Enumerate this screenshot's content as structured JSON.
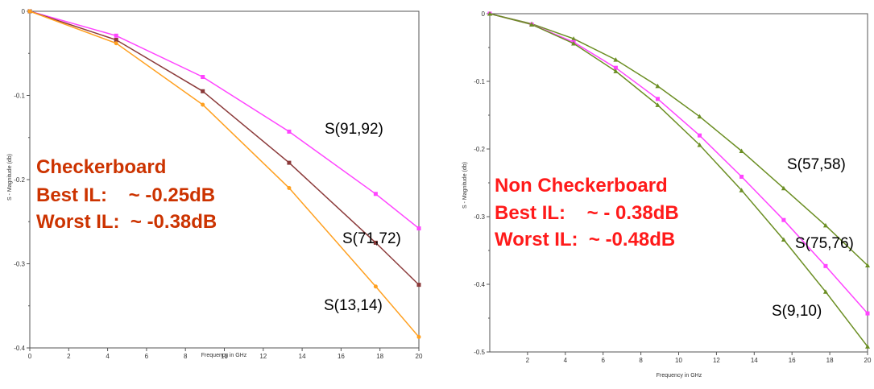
{
  "chart_data": [
    {
      "type": "line",
      "title": "",
      "xlabel": "Frequency in GHz",
      "ylabel": "S - Magnitude (db)",
      "xlim": [
        0,
        20
      ],
      "ylim": [
        -0.4,
        0
      ],
      "xticks": [
        0,
        2,
        4,
        6,
        8,
        10,
        12,
        14,
        16,
        18,
        20
      ],
      "yticks": [
        0,
        -0.1,
        -0.2,
        -0.3,
        -0.4
      ],
      "xtick_labels": [
        "0",
        "2",
        "4",
        "6",
        "8",
        "10",
        "12",
        "14",
        "16",
        "18",
        "20"
      ],
      "ytick_labels": [
        "0",
        "-0.1",
        "-0.2",
        "-0.3",
        "-0.4"
      ],
      "grid": false,
      "series": [
        {
          "name": "S(91,92)",
          "color": "#ff44ff",
          "marker": "square",
          "x": [
            0,
            4.44,
            8.89,
            13.33,
            17.78,
            20
          ],
          "y": [
            0,
            -0.029,
            -0.078,
            -0.143,
            -0.217,
            -0.258
          ]
        },
        {
          "name": "S(71,72)",
          "color": "#8b3a3a",
          "marker": "square",
          "x": [
            0,
            4.44,
            8.89,
            13.33,
            17.78,
            20
          ],
          "y": [
            0,
            -0.034,
            -0.095,
            -0.18,
            -0.275,
            -0.325
          ]
        },
        {
          "name": "S(13,14)",
          "color": "#ffa020",
          "marker": "circle",
          "x": [
            0,
            4.44,
            8.89,
            13.33,
            17.78,
            20
          ],
          "y": [
            0,
            -0.038,
            -0.111,
            -0.21,
            -0.327,
            -0.387
          ]
        }
      ],
      "annotations": [
        {
          "text": "Checkerboard",
          "color": "#cc3300"
        },
        {
          "text": "Best IL:    ~ -0.25dB",
          "color": "#cc3300"
        },
        {
          "text": "Worst IL:  ~ -0.38dB",
          "color": "#cc3300"
        }
      ]
    },
    {
      "type": "line",
      "title": "",
      "xlabel": "Frequency in GHz",
      "ylabel": "S - Magnitude (db)",
      "xlim": [
        0,
        20
      ],
      "ylim": [
        -0.5,
        0
      ],
      "xticks": [
        2,
        4,
        6,
        8,
        10,
        12,
        14,
        16,
        18,
        20
      ],
      "yticks": [
        0,
        -0.1,
        -0.2,
        -0.3,
        -0.4,
        -0.5
      ],
      "xtick_labels": [
        "2",
        "4",
        "6",
        "8",
        "10",
        "12",
        "14",
        "16",
        "18",
        "20"
      ],
      "ytick_labels": [
        "0",
        "-0.1",
        "-0.2",
        "-0.3",
        "-0.4",
        "-0.5"
      ],
      "grid": false,
      "series": [
        {
          "name": "S(57,58)",
          "color": "#6b8e23",
          "marker": "triangle",
          "x": [
            0,
            2.22,
            4.44,
            6.67,
            8.89,
            11.11,
            13.33,
            15.56,
            17.78,
            20
          ],
          "y": [
            0,
            -0.015,
            -0.037,
            -0.068,
            -0.107,
            -0.152,
            -0.203,
            -0.258,
            -0.313,
            -0.372
          ]
        },
        {
          "name": "S(75,76)",
          "color": "#ff44ff",
          "marker": "square",
          "x": [
            0,
            2.22,
            4.44,
            6.67,
            8.89,
            11.11,
            13.33,
            15.56,
            17.78,
            20
          ],
          "y": [
            0,
            -0.016,
            -0.042,
            -0.08,
            -0.126,
            -0.18,
            -0.241,
            -0.305,
            -0.373,
            -0.443
          ]
        },
        {
          "name": "S(9,10)",
          "color": "#6b8e23",
          "marker": "triangle",
          "x": [
            0,
            2.22,
            4.44,
            6.67,
            8.89,
            11.11,
            13.33,
            15.56,
            17.78,
            20
          ],
          "y": [
            0,
            -0.016,
            -0.044,
            -0.085,
            -0.135,
            -0.194,
            -0.261,
            -0.334,
            -0.411,
            -0.492
          ]
        }
      ],
      "annotations": [
        {
          "text": "Non Checkerboard",
          "color": "#ff1a1a"
        },
        {
          "text": "Best IL:    ~ - 0.38dB",
          "color": "#ff1a1a"
        },
        {
          "text": "Worst IL:  ~ -0.48dB",
          "color": "#ff1a1a"
        }
      ]
    }
  ]
}
